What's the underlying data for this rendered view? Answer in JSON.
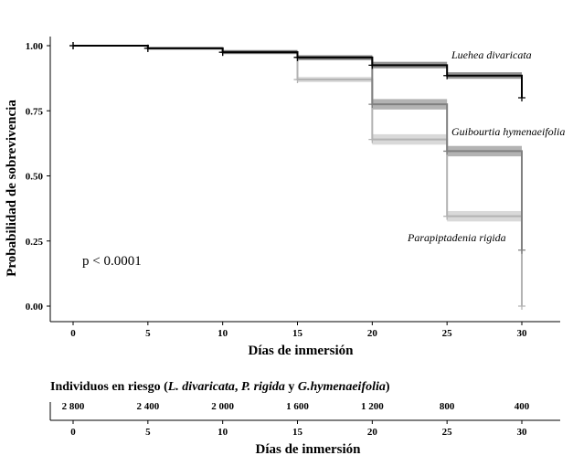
{
  "chart_data": {
    "type": "line",
    "step": true,
    "ylabel": "Probabilidad de sobrevivencia",
    "xlabel": "Días de inmersión",
    "xlim": [
      0,
      30
    ],
    "ylim": [
      0,
      1
    ],
    "xticks": [
      0,
      5,
      10,
      15,
      20,
      25,
      30
    ],
    "yticks": [
      "0.00",
      "0.25",
      "0.50",
      "0.75",
      "1.00"
    ],
    "pvalue_text": "p < 0.0001",
    "series": [
      {
        "name": "Luehea divaricata",
        "color": "#000000",
        "band_color": "#6e6e6e",
        "x": [
          0,
          5,
          10,
          15,
          20,
          25,
          30
        ],
        "y": [
          1.0,
          0.99,
          0.975,
          0.955,
          0.925,
          0.885,
          0.8
        ],
        "ci_low": [
          1.0,
          0.985,
          0.968,
          0.945,
          0.913,
          0.873,
          0.8
        ],
        "ci_high": [
          1.0,
          0.995,
          0.983,
          0.963,
          0.938,
          0.898,
          0.8
        ]
      },
      {
        "name": "Guibourtia hymenaeifolia",
        "color": "#808080",
        "band_color": "#9a9a9a",
        "x": [
          0,
          5,
          10,
          15,
          20,
          25,
          30
        ],
        "y": [
          1.0,
          0.99,
          0.975,
          0.955,
          0.775,
          0.595,
          0.215
        ],
        "ci_low": [
          1.0,
          0.985,
          0.968,
          0.945,
          0.755,
          0.575,
          0.215
        ],
        "ci_high": [
          1.0,
          0.995,
          0.983,
          0.963,
          0.795,
          0.615,
          0.215
        ]
      },
      {
        "name": "Parapiptadenia rigida",
        "color": "#b3b3b3",
        "band_color": "#cccccc",
        "x": [
          0,
          5,
          10,
          15,
          20,
          25,
          30
        ],
        "y": [
          1.0,
          0.99,
          0.975,
          0.87,
          0.64,
          0.345,
          0.0
        ],
        "ci_low": [
          1.0,
          0.985,
          0.968,
          0.86,
          0.62,
          0.325,
          0.0
        ],
        "ci_high": [
          1.0,
          0.995,
          0.983,
          0.88,
          0.66,
          0.365,
          0.0
        ]
      }
    ],
    "risk_table": {
      "title_prefix": "Individuos en riesgo  (",
      "title_sp1": "L. divaricata",
      "title_sep1": ", ",
      "title_sp2": "P. rigida",
      "title_sep2": " y ",
      "title_sp3": "G.hymenaeifolia",
      "title_suffix": ")",
      "x": [
        0,
        5,
        10,
        15,
        20,
        25,
        30
      ],
      "counts": [
        "2 800",
        "2 400",
        "2 000",
        "1 600",
        "1 200",
        "800",
        "400"
      ],
      "xlabel": "Días de inmersión"
    }
  }
}
